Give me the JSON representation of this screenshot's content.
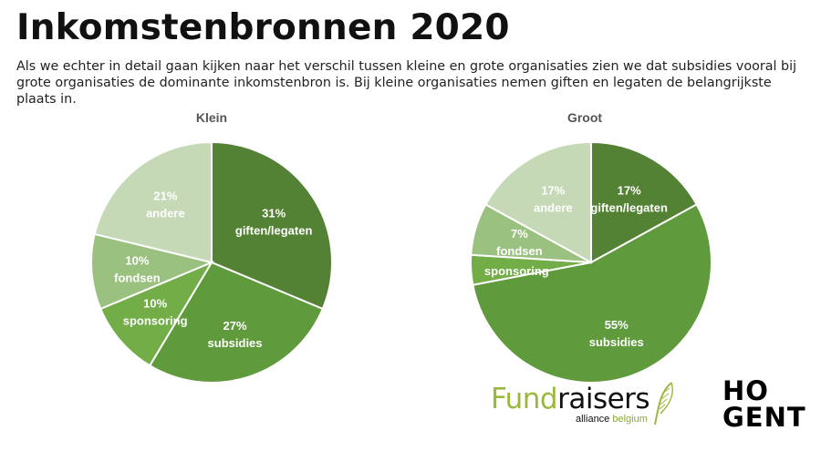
{
  "page": {
    "title": "Inkomstenbronnen 2020",
    "intro": "Als we echter in detail gaan kijken naar het verschil tussen kleine en grote organisaties zien we dat subsidies vooral bij grote organisaties de dominante inkomstenbron is. Bij kleine organisaties nemen giften en legaten de belangrijkste plaats in."
  },
  "logos": {
    "fundraisers": {
      "word_a": "Fund",
      "word_b": "raisers",
      "sub_a": "alliance",
      "sub_b": "belgium"
    },
    "hogent": {
      "line1": "HO",
      "line2": "GENT"
    }
  },
  "chart_data": [
    {
      "type": "pie",
      "title": "Klein",
      "start_angle_deg": 0,
      "direction": "clockwise",
      "slices": [
        {
          "label": "giften/legaten",
          "value": 31,
          "display": "31%",
          "color": "#548235"
        },
        {
          "label": "subsidies",
          "value": 27,
          "display": "27%",
          "color": "#5f9a3c"
        },
        {
          "label": "sponsoring",
          "value": 10,
          "display": "10%",
          "color": "#72ad47"
        },
        {
          "label": "fondsen",
          "value": 10,
          "display": "10%",
          "color": "#9bc180"
        },
        {
          "label": "andere",
          "value": 21,
          "display": "21%",
          "color": "#c5d9b6"
        }
      ]
    },
    {
      "type": "pie",
      "title": "Groot",
      "start_angle_deg": 0,
      "direction": "clockwise",
      "slices": [
        {
          "label": "giften/legaten",
          "value": 17,
          "display": "17%",
          "color": "#548235"
        },
        {
          "label": "subsidies",
          "value": 55,
          "display": "55%",
          "color": "#5f9a3c"
        },
        {
          "label": "sponsoring",
          "value": 4,
          "display": "4%",
          "color": "#72ad47"
        },
        {
          "label": "fondsen",
          "value": 7,
          "display": "7%",
          "color": "#9bc180"
        },
        {
          "label": "andere",
          "value": 17,
          "display": "17%",
          "color": "#c5d9b6"
        }
      ]
    }
  ]
}
